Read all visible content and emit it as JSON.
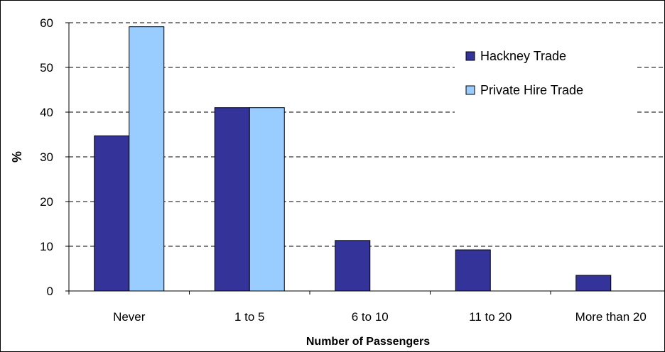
{
  "chart_data": {
    "type": "bar",
    "categories": [
      "Never",
      "1 to 5",
      "6 to 10",
      "11 to 20",
      "More than 20"
    ],
    "series": [
      {
        "name": "Hackney Trade",
        "values": [
          34.7,
          41,
          11.3,
          9.2,
          3.5
        ],
        "color": "#333399"
      },
      {
        "name": "Private Hire Trade",
        "values": [
          59.1,
          41,
          0,
          0,
          0
        ],
        "color": "#99ccff"
      }
    ],
    "title": "",
    "xlabel": "Number of Passengers",
    "ylabel": "%",
    "ylim": [
      0,
      60
    ],
    "yticks": [
      "0",
      "10",
      "20",
      "30",
      "40",
      "50",
      "60"
    ],
    "grid": "horizontal dashed",
    "legend_position": "top-right"
  }
}
